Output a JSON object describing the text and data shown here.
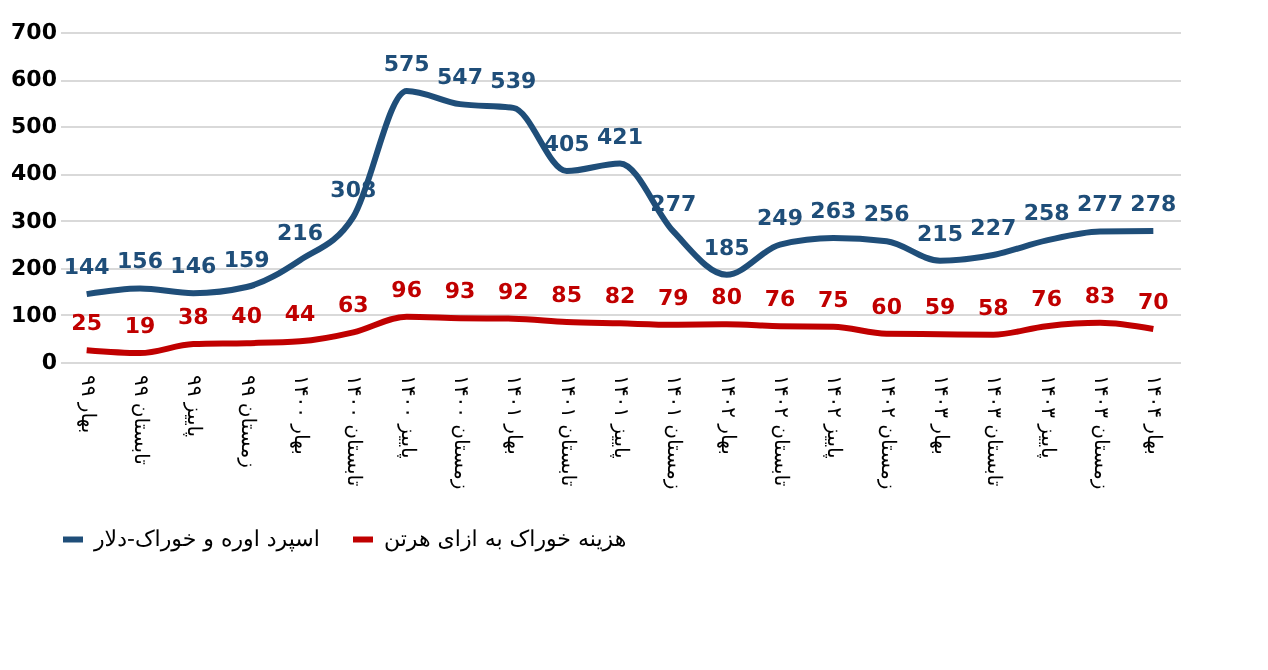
{
  "chart_data": {
    "type": "line",
    "categories": [
      "بهار ۹۹",
      "تابستان ۹۹",
      "پاییز ۹۹",
      "زمستان ۹۹",
      "بهار ۱۴۰۰",
      "تابستان ۱۴۰۰",
      "پاییز ۱۴۰۰",
      "زمستان ۱۴۰۰",
      "بهار ۱۴۰۱",
      "تابستان ۱۴۰۱",
      "پاییز ۱۴۰۱",
      "زمستان ۱۴۰۱",
      "بهار ۱۴۰۲",
      "تابستان ۱۴۰۲",
      "پاییز ۱۴۰۲",
      "زمستان ۱۴۰۲",
      "بهار ۱۴۰۳",
      "تابستان ۱۴۰۳",
      "پاییز ۱۴۰۳",
      "زمستان ۱۴۰۳",
      "بهار ۱۴۰۴"
    ],
    "series": [
      {
        "name": "اسپرد اوره و خوراک-دلار",
        "color": "#1f4e79",
        "values": [
          144,
          156,
          146,
          159,
          216,
          308,
          575,
          547,
          539,
          405,
          421,
          277,
          185,
          249,
          263,
          256,
          215,
          227,
          258,
          277,
          278
        ]
      },
      {
        "name": "هزینه خوراک به ازای هرتن",
        "color": "#c00000",
        "values": [
          25,
          19,
          38,
          40,
          44,
          63,
          96,
          93,
          92,
          85,
          82,
          79,
          80,
          76,
          75,
          60,
          59,
          58,
          76,
          83,
          70
        ]
      }
    ],
    "ylim": [
      0,
      700
    ],
    "yticks": [
      0,
      100,
      200,
      300,
      400,
      500,
      600,
      700
    ],
    "grid": "y",
    "legend": "bottom",
    "data_labels": true,
    "marker": "none",
    "line_style": "solid"
  }
}
